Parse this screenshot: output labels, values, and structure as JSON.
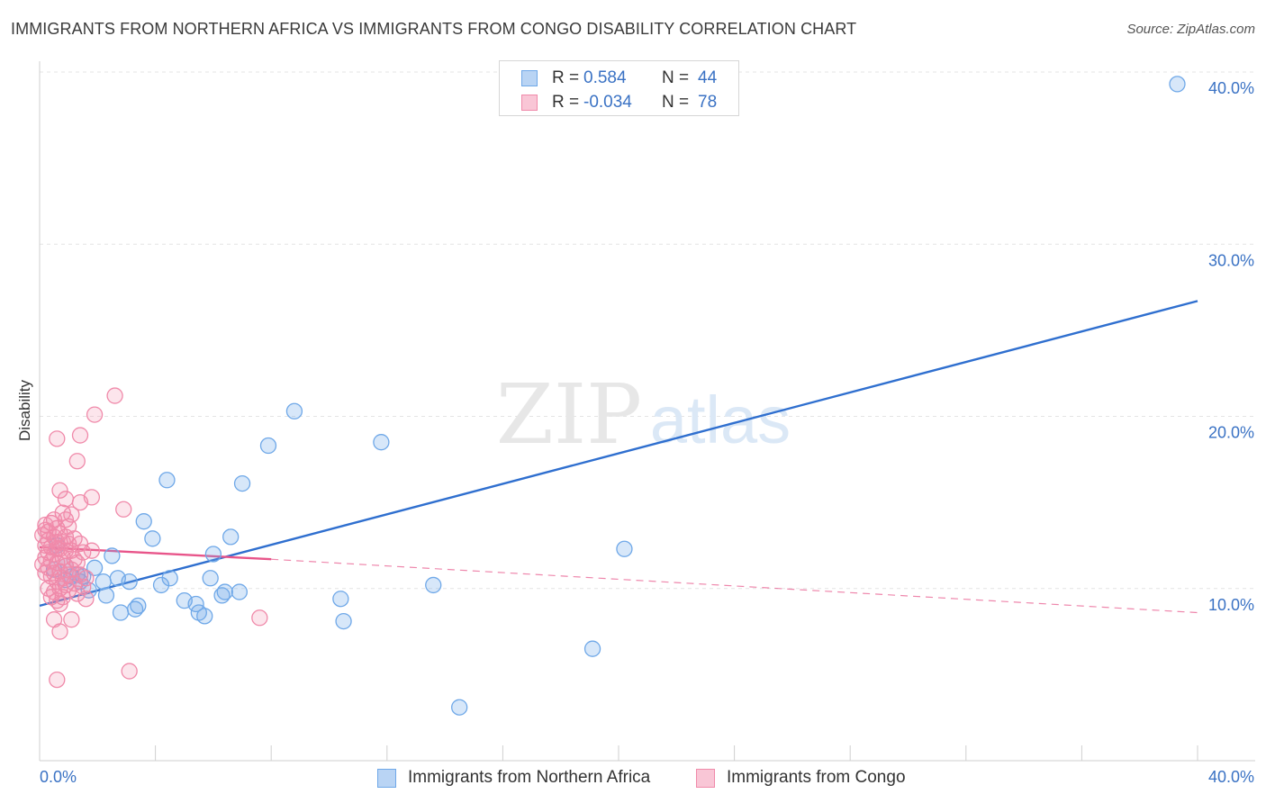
{
  "header": {
    "title": "IMMIGRANTS FROM NORTHERN AFRICA VS IMMIGRANTS FROM CONGO DISABILITY CORRELATION CHART",
    "source": "Source: ZipAtlas.com"
  },
  "watermark": {
    "zip": "ZIP",
    "atlas": "atlas"
  },
  "legend_top": {
    "rows": [
      {
        "r_label": "R =",
        "r_value": "0.584",
        "n_label": "N =",
        "n_value": "44",
        "color": "#6fa8e8"
      },
      {
        "r_label": "R =",
        "r_value": "-0.034",
        "n_label": "N =",
        "n_value": "78",
        "color": "#f08aaa"
      }
    ]
  },
  "legend_bottom": {
    "items": [
      {
        "label": "Immigrants from Northern Africa",
        "color": "#6fa8e8"
      },
      {
        "label": "Immigrants from Congo",
        "color": "#f08aaa"
      }
    ]
  },
  "chart_data": {
    "type": "scatter",
    "title": "IMMIGRANTS FROM NORTHERN AFRICA VS IMMIGRANTS FROM CONGO DISABILITY CORRELATION CHART",
    "xlabel": "",
    "ylabel": "Disability",
    "xlim": [
      0,
      40
    ],
    "ylim": [
      0,
      40
    ],
    "x_tick_labels": [
      "0.0%",
      "40.0%"
    ],
    "y_ticks": [
      10,
      20,
      30,
      40
    ],
    "y_tick_labels": [
      "10.0%",
      "20.0%",
      "30.0%",
      "40.0%"
    ],
    "grid": true,
    "series": [
      {
        "name": "Immigrants from Northern Africa",
        "color": "#6fa8e8",
        "trend_color": "#2f6fcf",
        "trend": {
          "x": [
            0,
            40
          ],
          "y": [
            9.0,
            26.7
          ]
        },
        "points": [
          [
            39.3,
            39.3
          ],
          [
            8.8,
            20.3
          ],
          [
            11.8,
            18.5
          ],
          [
            7.9,
            18.3
          ],
          [
            4.4,
            16.3
          ],
          [
            7.0,
            16.1
          ],
          [
            20.2,
            12.3
          ],
          [
            3.6,
            13.9
          ],
          [
            3.9,
            12.9
          ],
          [
            6.6,
            13.0
          ],
          [
            6.0,
            12.0
          ],
          [
            2.5,
            11.9
          ],
          [
            1.9,
            11.2
          ],
          [
            0.5,
            11.1
          ],
          [
            1.1,
            10.7
          ],
          [
            1.5,
            10.7
          ],
          [
            2.7,
            10.6
          ],
          [
            3.1,
            10.4
          ],
          [
            4.5,
            10.6
          ],
          [
            5.9,
            10.6
          ],
          [
            0.9,
            10.5
          ],
          [
            1.4,
            10.4
          ],
          [
            2.2,
            10.4
          ],
          [
            1.7,
            9.9
          ],
          [
            4.2,
            10.2
          ],
          [
            13.6,
            10.2
          ],
          [
            6.4,
            9.8
          ],
          [
            6.9,
            9.8
          ],
          [
            2.3,
            9.6
          ],
          [
            5.0,
            9.3
          ],
          [
            10.4,
            9.4
          ],
          [
            5.4,
            9.1
          ],
          [
            3.4,
            9.0
          ],
          [
            6.3,
            9.6
          ],
          [
            2.8,
            8.6
          ],
          [
            3.3,
            8.8
          ],
          [
            5.5,
            8.6
          ],
          [
            5.7,
            8.4
          ],
          [
            10.5,
            8.1
          ],
          [
            19.1,
            6.5
          ],
          [
            14.5,
            3.1
          ],
          [
            0.6,
            12.5
          ],
          [
            0.9,
            11.3
          ],
          [
            1.3,
            10.8
          ]
        ]
      },
      {
        "name": "Immigrants from Congo",
        "color": "#f08aaa",
        "trend_color": "#e8558a",
        "trend": {
          "x": [
            0,
            8
          ],
          "y": [
            12.4,
            11.7
          ]
        },
        "trend_dashed": {
          "x": [
            8,
            40
          ],
          "y": [
            11.7,
            8.6
          ]
        },
        "points": [
          [
            2.6,
            21.2
          ],
          [
            1.9,
            20.1
          ],
          [
            1.4,
            18.9
          ],
          [
            0.6,
            18.7
          ],
          [
            1.3,
            17.4
          ],
          [
            0.7,
            15.7
          ],
          [
            1.8,
            15.3
          ],
          [
            0.9,
            15.2
          ],
          [
            1.4,
            15.0
          ],
          [
            2.9,
            14.6
          ],
          [
            0.8,
            14.4
          ],
          [
            1.1,
            14.3
          ],
          [
            0.5,
            14.0
          ],
          [
            0.9,
            14.0
          ],
          [
            0.4,
            13.8
          ],
          [
            0.2,
            13.7
          ],
          [
            0.6,
            13.5
          ],
          [
            0.3,
            13.3
          ],
          [
            0.7,
            13.2
          ],
          [
            0.1,
            13.1
          ],
          [
            0.5,
            13.0
          ],
          [
            0.9,
            13.0
          ],
          [
            1.2,
            12.9
          ],
          [
            0.3,
            12.8
          ],
          [
            0.6,
            12.7
          ],
          [
            0.8,
            12.7
          ],
          [
            1.0,
            12.6
          ],
          [
            1.4,
            12.6
          ],
          [
            0.2,
            12.5
          ],
          [
            0.4,
            12.4
          ],
          [
            0.6,
            12.3
          ],
          [
            0.7,
            12.3
          ],
          [
            0.9,
            12.2
          ],
          [
            1.1,
            12.2
          ],
          [
            0.3,
            12.1
          ],
          [
            0.5,
            12.0
          ],
          [
            1.5,
            12.1
          ],
          [
            0.2,
            11.8
          ],
          [
            0.8,
            11.8
          ],
          [
            1.2,
            11.7
          ],
          [
            0.4,
            11.6
          ],
          [
            0.6,
            11.5
          ],
          [
            1.3,
            11.5
          ],
          [
            0.1,
            11.4
          ],
          [
            0.9,
            11.3
          ],
          [
            0.3,
            11.2
          ],
          [
            1.1,
            11.1
          ],
          [
            0.7,
            11.0
          ],
          [
            0.2,
            10.9
          ],
          [
            0.5,
            10.9
          ],
          [
            1.0,
            10.8
          ],
          [
            1.4,
            10.8
          ],
          [
            0.4,
            10.7
          ],
          [
            0.8,
            10.6
          ],
          [
            1.6,
            10.6
          ],
          [
            0.6,
            10.4
          ],
          [
            1.2,
            10.3
          ],
          [
            0.9,
            10.2
          ],
          [
            1.5,
            10.1
          ],
          [
            0.3,
            10.0
          ],
          [
            0.7,
            10.0
          ],
          [
            1.0,
            9.9
          ],
          [
            0.5,
            9.8
          ],
          [
            1.3,
            9.7
          ],
          [
            0.4,
            9.5
          ],
          [
            0.8,
            9.5
          ],
          [
            1.6,
            9.4
          ],
          [
            0.6,
            9.3
          ],
          [
            0.7,
            9.1
          ],
          [
            0.5,
            8.2
          ],
          [
            1.1,
            8.2
          ],
          [
            7.6,
            8.3
          ],
          [
            0.7,
            7.5
          ],
          [
            3.1,
            5.2
          ],
          [
            0.6,
            4.7
          ],
          [
            1.8,
            12.2
          ],
          [
            0.2,
            13.4
          ],
          [
            1.0,
            13.6
          ]
        ]
      }
    ]
  }
}
